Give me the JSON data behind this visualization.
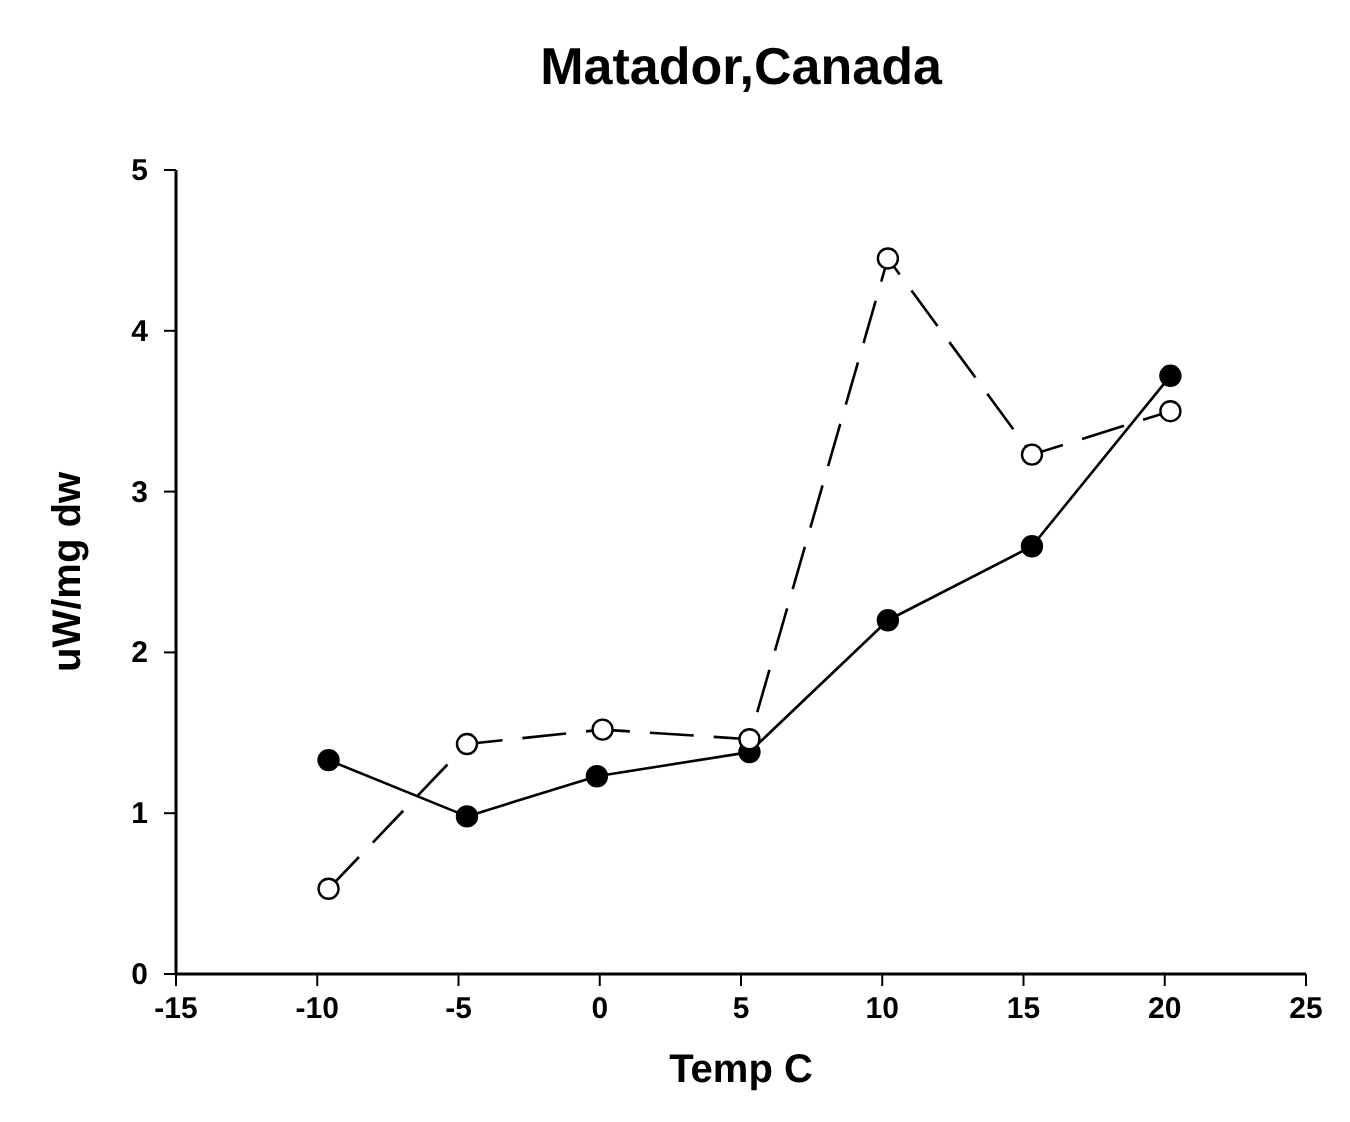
{
  "chart_data": {
    "type": "line",
    "title": "Matador,Canada",
    "xlabel": "Temp C",
    "ylabel": "uW/mg dw",
    "xlim": [
      -15,
      25
    ],
    "xticks": [
      -15,
      -10,
      -5,
      0,
      5,
      10,
      15,
      20,
      25
    ],
    "ylim": [
      0,
      5
    ],
    "yticks": [
      0,
      1,
      2,
      3,
      4,
      5
    ],
    "grid": false,
    "marker": "circle",
    "series": [
      {
        "color": "#000000",
        "line_style": "solid",
        "x": [
          -9.6,
          -4.7,
          -0.1,
          5.3,
          10.2,
          15.3,
          20.2
        ],
        "values": [
          1.33,
          0.98,
          1.23,
          1.38,
          2.2,
          2.66,
          3.72
        ]
      },
      {
        "color": "#ffffff",
        "line_style": "dashed",
        "x": [
          -9.6,
          -4.7,
          0.1,
          5.3,
          10.2,
          15.3,
          20.2
        ],
        "values": [
          0.53,
          1.43,
          1.52,
          1.46,
          4.45,
          3.23,
          3.5
        ]
      }
    ]
  }
}
